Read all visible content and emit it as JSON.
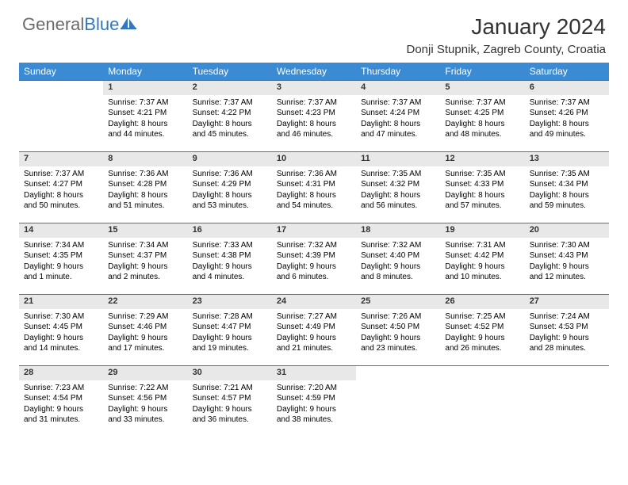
{
  "logo": {
    "part1": "General",
    "part2": "Blue"
  },
  "title": "January 2024",
  "location": "Donji Stupnik, Zagreb County, Croatia",
  "colors": {
    "header_bg": "#3b8bd4",
    "header_text": "#ffffff",
    "daynum_bg": "#e8e8e8",
    "border": "#2f79c2",
    "logo_gray": "#6b6b6b",
    "logo_blue": "#2f79c2"
  },
  "weekdays": [
    "Sunday",
    "Monday",
    "Tuesday",
    "Wednesday",
    "Thursday",
    "Friday",
    "Saturday"
  ],
  "weeks": [
    {
      "nums": [
        "",
        "1",
        "2",
        "3",
        "4",
        "5",
        "6"
      ],
      "cells": [
        {
          "empty": true
        },
        {
          "sunrise": "Sunrise: 7:37 AM",
          "sunset": "Sunset: 4:21 PM",
          "day1": "Daylight: 8 hours",
          "day2": "and 44 minutes."
        },
        {
          "sunrise": "Sunrise: 7:37 AM",
          "sunset": "Sunset: 4:22 PM",
          "day1": "Daylight: 8 hours",
          "day2": "and 45 minutes."
        },
        {
          "sunrise": "Sunrise: 7:37 AM",
          "sunset": "Sunset: 4:23 PM",
          "day1": "Daylight: 8 hours",
          "day2": "and 46 minutes."
        },
        {
          "sunrise": "Sunrise: 7:37 AM",
          "sunset": "Sunset: 4:24 PM",
          "day1": "Daylight: 8 hours",
          "day2": "and 47 minutes."
        },
        {
          "sunrise": "Sunrise: 7:37 AM",
          "sunset": "Sunset: 4:25 PM",
          "day1": "Daylight: 8 hours",
          "day2": "and 48 minutes."
        },
        {
          "sunrise": "Sunrise: 7:37 AM",
          "sunset": "Sunset: 4:26 PM",
          "day1": "Daylight: 8 hours",
          "day2": "and 49 minutes."
        }
      ]
    },
    {
      "nums": [
        "7",
        "8",
        "9",
        "10",
        "11",
        "12",
        "13"
      ],
      "cells": [
        {
          "sunrise": "Sunrise: 7:37 AM",
          "sunset": "Sunset: 4:27 PM",
          "day1": "Daylight: 8 hours",
          "day2": "and 50 minutes."
        },
        {
          "sunrise": "Sunrise: 7:36 AM",
          "sunset": "Sunset: 4:28 PM",
          "day1": "Daylight: 8 hours",
          "day2": "and 51 minutes."
        },
        {
          "sunrise": "Sunrise: 7:36 AM",
          "sunset": "Sunset: 4:29 PM",
          "day1": "Daylight: 8 hours",
          "day2": "and 53 minutes."
        },
        {
          "sunrise": "Sunrise: 7:36 AM",
          "sunset": "Sunset: 4:31 PM",
          "day1": "Daylight: 8 hours",
          "day2": "and 54 minutes."
        },
        {
          "sunrise": "Sunrise: 7:35 AM",
          "sunset": "Sunset: 4:32 PM",
          "day1": "Daylight: 8 hours",
          "day2": "and 56 minutes."
        },
        {
          "sunrise": "Sunrise: 7:35 AM",
          "sunset": "Sunset: 4:33 PM",
          "day1": "Daylight: 8 hours",
          "day2": "and 57 minutes."
        },
        {
          "sunrise": "Sunrise: 7:35 AM",
          "sunset": "Sunset: 4:34 PM",
          "day1": "Daylight: 8 hours",
          "day2": "and 59 minutes."
        }
      ]
    },
    {
      "nums": [
        "14",
        "15",
        "16",
        "17",
        "18",
        "19",
        "20"
      ],
      "cells": [
        {
          "sunrise": "Sunrise: 7:34 AM",
          "sunset": "Sunset: 4:35 PM",
          "day1": "Daylight: 9 hours",
          "day2": "and 1 minute."
        },
        {
          "sunrise": "Sunrise: 7:34 AM",
          "sunset": "Sunset: 4:37 PM",
          "day1": "Daylight: 9 hours",
          "day2": "and 2 minutes."
        },
        {
          "sunrise": "Sunrise: 7:33 AM",
          "sunset": "Sunset: 4:38 PM",
          "day1": "Daylight: 9 hours",
          "day2": "and 4 minutes."
        },
        {
          "sunrise": "Sunrise: 7:32 AM",
          "sunset": "Sunset: 4:39 PM",
          "day1": "Daylight: 9 hours",
          "day2": "and 6 minutes."
        },
        {
          "sunrise": "Sunrise: 7:32 AM",
          "sunset": "Sunset: 4:40 PM",
          "day1": "Daylight: 9 hours",
          "day2": "and 8 minutes."
        },
        {
          "sunrise": "Sunrise: 7:31 AM",
          "sunset": "Sunset: 4:42 PM",
          "day1": "Daylight: 9 hours",
          "day2": "and 10 minutes."
        },
        {
          "sunrise": "Sunrise: 7:30 AM",
          "sunset": "Sunset: 4:43 PM",
          "day1": "Daylight: 9 hours",
          "day2": "and 12 minutes."
        }
      ]
    },
    {
      "nums": [
        "21",
        "22",
        "23",
        "24",
        "25",
        "26",
        "27"
      ],
      "cells": [
        {
          "sunrise": "Sunrise: 7:30 AM",
          "sunset": "Sunset: 4:45 PM",
          "day1": "Daylight: 9 hours",
          "day2": "and 14 minutes."
        },
        {
          "sunrise": "Sunrise: 7:29 AM",
          "sunset": "Sunset: 4:46 PM",
          "day1": "Daylight: 9 hours",
          "day2": "and 17 minutes."
        },
        {
          "sunrise": "Sunrise: 7:28 AM",
          "sunset": "Sunset: 4:47 PM",
          "day1": "Daylight: 9 hours",
          "day2": "and 19 minutes."
        },
        {
          "sunrise": "Sunrise: 7:27 AM",
          "sunset": "Sunset: 4:49 PM",
          "day1": "Daylight: 9 hours",
          "day2": "and 21 minutes."
        },
        {
          "sunrise": "Sunrise: 7:26 AM",
          "sunset": "Sunset: 4:50 PM",
          "day1": "Daylight: 9 hours",
          "day2": "and 23 minutes."
        },
        {
          "sunrise": "Sunrise: 7:25 AM",
          "sunset": "Sunset: 4:52 PM",
          "day1": "Daylight: 9 hours",
          "day2": "and 26 minutes."
        },
        {
          "sunrise": "Sunrise: 7:24 AM",
          "sunset": "Sunset: 4:53 PM",
          "day1": "Daylight: 9 hours",
          "day2": "and 28 minutes."
        }
      ]
    },
    {
      "nums": [
        "28",
        "29",
        "30",
        "31",
        "",
        "",
        ""
      ],
      "cells": [
        {
          "sunrise": "Sunrise: 7:23 AM",
          "sunset": "Sunset: 4:54 PM",
          "day1": "Daylight: 9 hours",
          "day2": "and 31 minutes."
        },
        {
          "sunrise": "Sunrise: 7:22 AM",
          "sunset": "Sunset: 4:56 PM",
          "day1": "Daylight: 9 hours",
          "day2": "and 33 minutes."
        },
        {
          "sunrise": "Sunrise: 7:21 AM",
          "sunset": "Sunset: 4:57 PM",
          "day1": "Daylight: 9 hours",
          "day2": "and 36 minutes."
        },
        {
          "sunrise": "Sunrise: 7:20 AM",
          "sunset": "Sunset: 4:59 PM",
          "day1": "Daylight: 9 hours",
          "day2": "and 38 minutes."
        },
        {
          "empty": true
        },
        {
          "empty": true
        },
        {
          "empty": true
        }
      ]
    }
  ]
}
